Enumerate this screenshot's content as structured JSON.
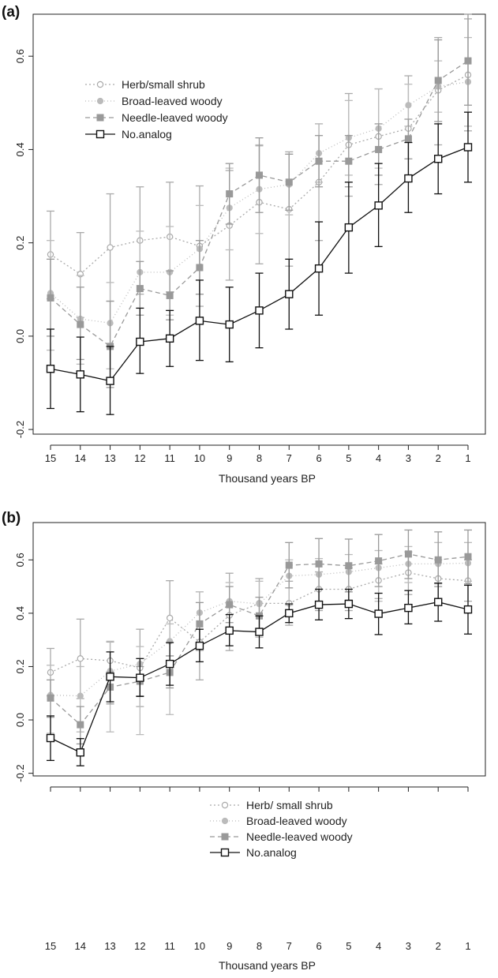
{
  "figure": {
    "panels": [
      "(a)",
      "(b)"
    ]
  },
  "chart_data": [
    {
      "type": "line",
      "panel_label": "(a)",
      "title": "",
      "xlabel": "Thousand years BP",
      "ylabel": "",
      "x": [
        15,
        14,
        13,
        12,
        11,
        10,
        9,
        8,
        7,
        6,
        5,
        4,
        3,
        2,
        1
      ],
      "x_tick_labels": [
        "15",
        "14",
        "13",
        "12",
        "11",
        "10",
        "9",
        "8",
        "7",
        "6",
        "5",
        "4",
        "3",
        "2",
        "1"
      ],
      "y_ticks": [
        -0.2,
        0.0,
        0.2,
        0.4,
        0.6
      ],
      "y_tick_labels": [
        "-0.2",
        "0.0",
        "0.2",
        "0.4",
        "0.6"
      ],
      "ylim": [
        -0.21,
        0.69
      ],
      "grid": false,
      "legend_position": "top-left",
      "series": [
        {
          "name": "Herb/small shrub",
          "color": "#aaaaaa",
          "marker": "open-circle",
          "dash": "2,3",
          "zorder": 1,
          "values": [
            0.175,
            0.133,
            0.19,
            0.205,
            0.213,
            0.193,
            0.237,
            0.287,
            0.272,
            0.33,
            0.41,
            0.428,
            0.445,
            0.527,
            0.56
          ],
          "upper": [
            0.268,
            0.222,
            0.305,
            0.32,
            0.33,
            0.322,
            0.355,
            0.408,
            0.395,
            0.455,
            0.52,
            0.53,
            0.558,
            0.64,
            0.68
          ],
          "lower": [
            0.08,
            0.04,
            0.075,
            0.09,
            0.095,
            0.064,
            0.12,
            0.155,
            0.15,
            0.205,
            0.3,
            0.325,
            0.332,
            0.41,
            0.44
          ]
        },
        {
          "name": "Broad-leaved woody",
          "color": "#bbbbbb",
          "marker": "filled-circle",
          "dash": "1,3",
          "zorder": 2,
          "values": [
            0.092,
            0.037,
            0.028,
            0.137,
            0.137,
            0.187,
            0.275,
            0.315,
            0.325,
            0.392,
            0.425,
            0.445,
            0.495,
            0.535,
            0.545
          ],
          "upper": [
            0.205,
            0.13,
            0.115,
            0.225,
            0.235,
            0.28,
            0.36,
            0.41,
            0.39,
            0.455,
            0.505,
            0.53,
            0.54,
            0.59,
            0.64
          ],
          "lower": [
            -0.03,
            -0.06,
            -0.07,
            0.06,
            0.045,
            0.09,
            0.185,
            0.22,
            0.26,
            0.33,
            0.345,
            0.36,
            0.45,
            0.48,
            0.45
          ]
        },
        {
          "name": "Needle-leaved woody",
          "color": "#999999",
          "marker": "filled-square",
          "dash": "6,4",
          "zorder": 3,
          "values": [
            0.082,
            0.025,
            -0.022,
            0.102,
            0.087,
            0.147,
            0.305,
            0.345,
            0.33,
            0.375,
            0.375,
            0.4,
            0.423,
            0.548,
            0.59
          ],
          "upper": [
            0.165,
            0.105,
            0.075,
            0.16,
            0.14,
            0.205,
            0.37,
            0.425,
            0.39,
            0.43,
            0.43,
            0.455,
            0.465,
            0.635,
            0.69
          ],
          "lower": [
            0.0,
            -0.05,
            -0.11,
            0.045,
            0.035,
            0.09,
            0.24,
            0.265,
            0.27,
            0.32,
            0.32,
            0.345,
            0.38,
            0.46,
            0.495
          ]
        },
        {
          "name": "No.analog",
          "color": "#111111",
          "marker": "open-square",
          "dash": "",
          "zorder": 4,
          "values": [
            -0.07,
            -0.082,
            -0.096,
            -0.012,
            -0.005,
            0.033,
            0.025,
            0.055,
            0.09,
            0.145,
            0.233,
            0.28,
            0.338,
            0.38,
            0.405
          ],
          "upper": [
            0.015,
            -0.002,
            -0.022,
            0.06,
            0.055,
            0.12,
            0.105,
            0.135,
            0.165,
            0.245,
            0.33,
            0.37,
            0.415,
            0.455,
            0.48
          ],
          "lower": [
            -0.155,
            -0.162,
            -0.168,
            -0.08,
            -0.065,
            -0.052,
            -0.055,
            -0.025,
            0.015,
            0.045,
            0.135,
            0.192,
            0.265,
            0.305,
            0.33
          ]
        }
      ]
    },
    {
      "type": "line",
      "panel_label": "(b)",
      "title": "",
      "xlabel": "Thousand years BP",
      "ylabel": "",
      "x": [
        15,
        14,
        13,
        12,
        11,
        10,
        9,
        8,
        7,
        6,
        5,
        4,
        3,
        2,
        1
      ],
      "x_tick_labels": [
        "15",
        "14",
        "13",
        "12",
        "11",
        "10",
        "9",
        "8",
        "7",
        "6",
        "5",
        "4",
        "3",
        "2",
        "1"
      ],
      "y_ticks": [
        -0.2,
        0.0,
        0.2,
        0.4,
        0.6
      ],
      "y_tick_labels": [
        "-0.2",
        "0.0",
        "0.2",
        "0.4",
        "0.6"
      ],
      "ylim": [
        -0.21,
        0.74
      ],
      "grid": false,
      "legend_position": "bottom-right",
      "series": [
        {
          "name": "Herb/ small shrub",
          "color": "#aaaaaa",
          "marker": "open-circle",
          "dash": "2,3",
          "zorder": 1,
          "values": [
            0.178,
            0.23,
            0.222,
            0.195,
            0.382,
            0.292,
            0.392,
            0.437,
            0.437,
            0.49,
            0.49,
            0.523,
            0.552,
            0.53,
            0.522
          ],
          "upper": [
            0.268,
            0.378,
            0.292,
            0.34,
            0.522,
            0.48,
            0.55,
            0.53,
            0.52,
            0.555,
            0.57,
            0.585,
            0.63,
            0.6,
            0.6
          ],
          "lower": [
            0.09,
            0.08,
            0.155,
            0.05,
            0.24,
            0.15,
            0.26,
            0.34,
            0.355,
            0.41,
            0.41,
            0.455,
            0.47,
            0.455,
            0.445
          ]
        },
        {
          "name": "Broad-leaved woody",
          "color": "#bbbbbb",
          "marker": "filled-circle",
          "dash": "1,3",
          "zorder": 2,
          "values": [
            0.093,
            0.09,
            0.183,
            0.21,
            0.295,
            0.402,
            0.445,
            0.435,
            0.54,
            0.545,
            0.555,
            0.57,
            0.585,
            0.585,
            0.588
          ],
          "upper": [
            0.205,
            0.2,
            0.295,
            0.275,
            0.36,
            0.48,
            0.515,
            0.52,
            0.6,
            0.605,
            0.62,
            0.635,
            0.65,
            0.665,
            0.665
          ],
          "lower": [
            -0.05,
            -0.045,
            -0.045,
            -0.055,
            0.02,
            0.26,
            0.33,
            0.31,
            0.43,
            0.44,
            0.45,
            0.445,
            0.515,
            0.51,
            0.52
          ]
        },
        {
          "name": "Needle-leaved woody",
          "color": "#999999",
          "marker": "filled-square",
          "dash": "6,4",
          "zorder": 3,
          "values": [
            0.082,
            -0.018,
            0.123,
            0.145,
            0.178,
            0.36,
            0.432,
            0.39,
            0.58,
            0.585,
            0.578,
            0.596,
            0.622,
            0.6,
            0.612
          ],
          "upper": [
            0.15,
            0.05,
            0.18,
            0.2,
            0.24,
            0.44,
            0.5,
            0.46,
            0.665,
            0.68,
            0.678,
            0.695,
            0.712,
            0.705,
            0.712
          ],
          "lower": [
            0.01,
            -0.09,
            0.06,
            0.09,
            0.12,
            0.28,
            0.365,
            0.32,
            0.495,
            0.49,
            0.48,
            0.5,
            0.53,
            0.5,
            0.51
          ]
        },
        {
          "name": "No.analog",
          "color": "#111111",
          "marker": "open-square",
          "dash": "",
          "zorder": 4,
          "values": [
            -0.068,
            -0.122,
            0.162,
            0.158,
            0.21,
            0.278,
            0.335,
            0.33,
            0.4,
            0.432,
            0.435,
            0.398,
            0.42,
            0.442,
            0.414
          ],
          "upper": [
            0.015,
            -0.07,
            0.255,
            0.23,
            0.29,
            0.34,
            0.395,
            0.39,
            0.435,
            0.49,
            0.49,
            0.475,
            0.485,
            0.513,
            0.505
          ],
          "lower": [
            -0.152,
            -0.172,
            0.068,
            0.088,
            0.13,
            0.218,
            0.278,
            0.27,
            0.365,
            0.375,
            0.38,
            0.32,
            0.36,
            0.37,
            0.322
          ]
        }
      ]
    }
  ]
}
